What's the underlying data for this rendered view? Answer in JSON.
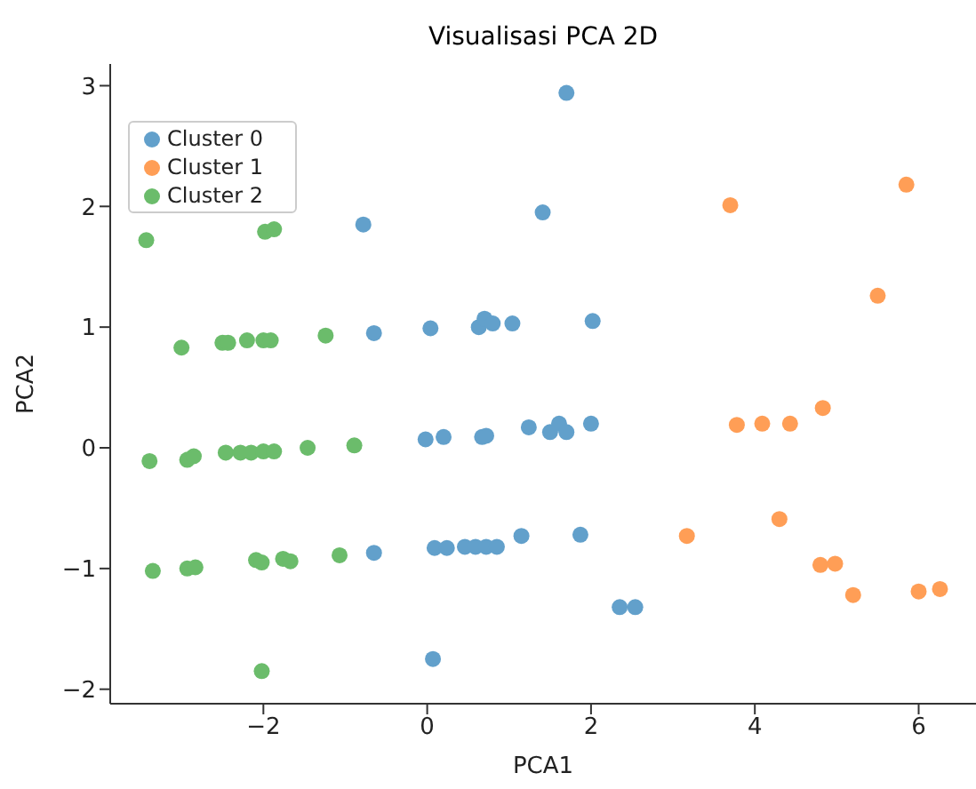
{
  "chart_data": {
    "type": "scatter",
    "title": "Visualisasi PCA 2D",
    "xlabel": "PCA1",
    "ylabel": "PCA2",
    "xlim": [
      -3.87,
      6.7
    ],
    "ylim": [
      -2.12,
      3.18
    ],
    "xticks": [
      {
        "value": -2,
        "label": "−2"
      },
      0,
      2,
      4,
      6
    ],
    "yticks": [
      {
        "value": -2,
        "label": "−2"
      },
      {
        "value": -1,
        "label": "−1"
      },
      0,
      1,
      2,
      3
    ],
    "grid": false,
    "legend": "top left",
    "marker": "circle",
    "series": [
      {
        "name": "Cluster 0",
        "color": "#62a0cb",
        "x": [
          1.7,
          1.41,
          0.04,
          0.63,
          0.7,
          0.8,
          1.04,
          2.02,
          -0.02,
          0.2,
          0.67,
          0.72,
          1.24,
          1.5,
          1.61,
          1.7,
          2.0,
          0.09,
          0.24,
          0.46,
          0.59,
          0.72,
          0.85,
          1.15,
          1.87,
          2.35,
          2.54,
          0.07,
          -0.78,
          -0.65,
          -0.65
        ],
        "values": [
          2.94,
          1.95,
          0.99,
          1.0,
          1.07,
          1.03,
          1.03,
          1.05,
          0.07,
          0.09,
          0.09,
          0.1,
          0.17,
          0.13,
          0.2,
          0.13,
          0.2,
          -0.83,
          -0.83,
          -0.82,
          -0.82,
          -0.82,
          -0.82,
          -0.73,
          -0.72,
          -1.32,
          -1.32,
          -1.75,
          1.85,
          0.95,
          -0.87
        ]
      },
      {
        "name": "Cluster 1",
        "color": "#ff9e56",
        "x": [
          3.7,
          5.85,
          5.5,
          3.78,
          4.09,
          4.43,
          4.83,
          3.17,
          4.3,
          4.8,
          4.98,
          5.2,
          6.0,
          6.26
        ],
        "values": [
          2.01,
          2.18,
          1.26,
          0.19,
          0.2,
          0.2,
          0.33,
          -0.73,
          -0.59,
          -0.97,
          -0.96,
          -1.22,
          -1.19,
          -1.17
        ]
      },
      {
        "name": "Cluster 2",
        "color": "#6bbc6b",
        "x": [
          -3.43,
          -1.98,
          -1.87,
          -3.0,
          -2.5,
          -2.43,
          -2.2,
          -2.0,
          -1.91,
          -1.24,
          -3.39,
          -2.93,
          -2.85,
          -2.46,
          -2.28,
          -2.15,
          -2.0,
          -1.87,
          -1.46,
          -0.89,
          -3.35,
          -2.93,
          -2.83,
          -2.09,
          -2.02,
          -1.76,
          -1.67,
          -1.07,
          -2.02
        ],
        "values": [
          1.72,
          1.79,
          1.81,
          0.83,
          0.87,
          0.87,
          0.89,
          0.89,
          0.89,
          0.93,
          -0.11,
          -0.1,
          -0.07,
          -0.04,
          -0.04,
          -0.04,
          -0.03,
          -0.03,
          0.0,
          0.02,
          -1.02,
          -1.0,
          -0.99,
          -0.93,
          -0.95,
          -0.92,
          -0.94,
          -0.89,
          -1.85
        ]
      }
    ]
  }
}
